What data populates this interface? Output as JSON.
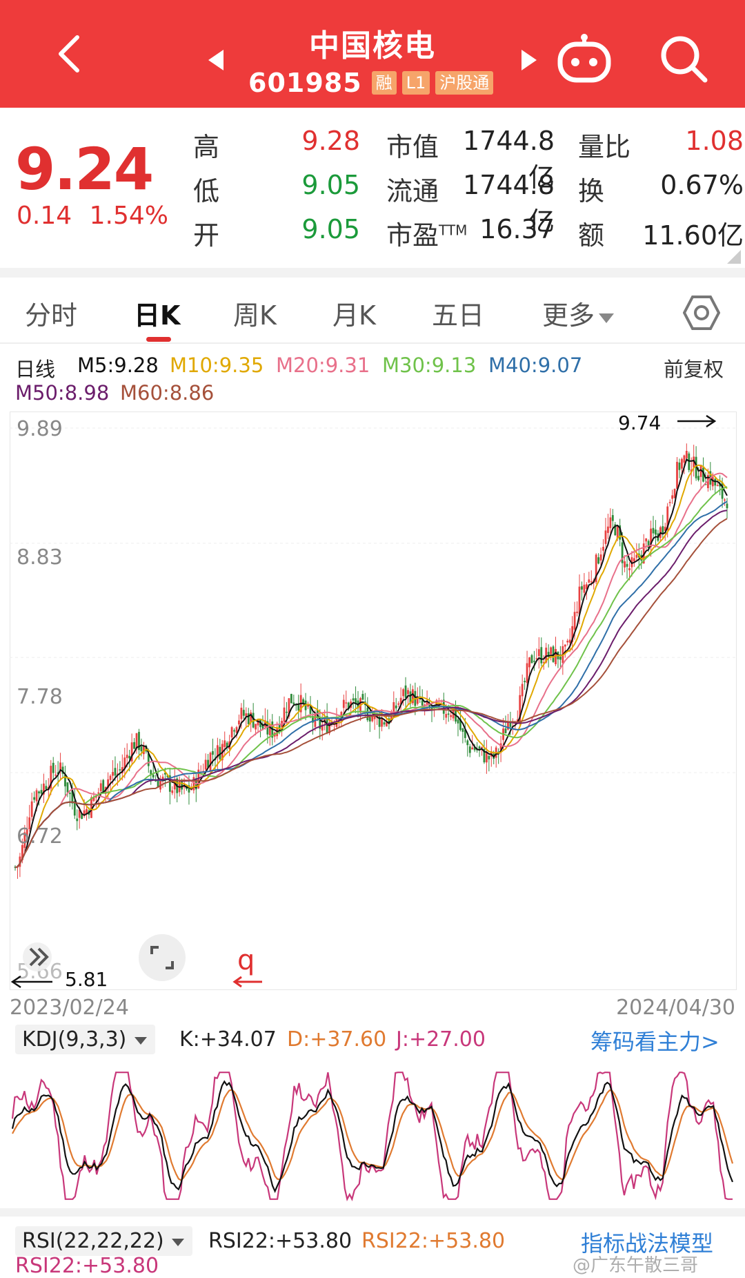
{
  "header": {
    "title": "中国核电",
    "code": "601985",
    "tags": [
      "融",
      "L1",
      "沪股通"
    ]
  },
  "quote": {
    "price": "9.24",
    "change": "0.14",
    "change_pct": "1.54%",
    "high_label": "高",
    "high": "9.28",
    "low_label": "低",
    "low": "9.05",
    "open_label": "开",
    "open": "9.05",
    "mcap_label": "市值",
    "mcap": "1744.8亿",
    "float_label": "流通",
    "float": "1744.8亿",
    "pe_label": "市盈",
    "pe_sup": "TTM",
    "pe": "16.37",
    "vr_label": "量比",
    "vr": "1.08",
    "turnover_label": "换",
    "turnover": "0.67%",
    "amount_label": "额",
    "amount": "11.60亿"
  },
  "tabs": [
    "分时",
    "日K",
    "周K",
    "月K",
    "五日",
    "更多"
  ],
  "active_tab": "日K",
  "ma": {
    "label": "日线",
    "m5": "M5:9.28",
    "m10": "M10:9.35",
    "m20": "M20:9.31",
    "m30": "M30:9.13",
    "m40": "M40:9.07",
    "m50": "M50:8.98",
    "m60": "M60:8.86",
    "adjust": "前复权",
    "colors": {
      "m5": "#111111",
      "m10": "#e0a800",
      "m20": "#e8708a",
      "m30": "#6fc24a",
      "m40": "#2f6fa8",
      "m50": "#6b1d6b",
      "m60": "#a5503a"
    }
  },
  "chart": {
    "y_ticks": [
      "9.89",
      "8.83",
      "7.78",
      "6.72",
      "5.66"
    ],
    "max_label": "9.74",
    "min_label": "5.81",
    "start_date": "2023/02/24",
    "end_date": "2024/04/30",
    "marker": "q"
  },
  "kdj": {
    "name": "KDJ(9,3,3)",
    "k": "K:+34.07",
    "d": "D:+37.60",
    "j": "J:+27.00",
    "link": "筹码看主力>"
  },
  "rsi": {
    "name": "RSI(22,22,22)",
    "r1": "RSI22:+53.80",
    "r2": "RSI22:+53.80",
    "r3": "RSI22:+53.80",
    "link": "指标战法模型",
    "watermark": "@广东午散三哥"
  }
}
